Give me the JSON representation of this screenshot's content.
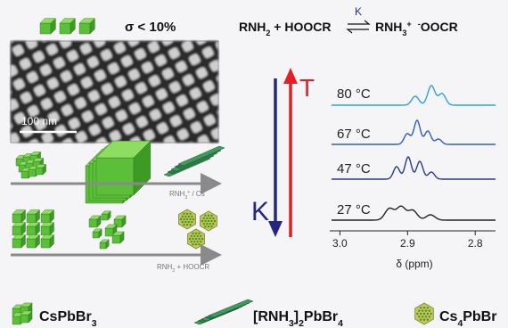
{
  "header": {
    "sigma": "σ < 10%",
    "equation": {
      "lhs": [
        {
          "text": "RNH"
        },
        {
          "text": "2",
          "sub": true
        },
        {
          "text": " + HOOCR"
        }
      ],
      "constant": "K",
      "rhs": [
        {
          "text": "RNH"
        },
        {
          "text": "3",
          "sub": true
        },
        {
          "text": "+",
          "sup": true
        },
        {
          "text": "-",
          "sup": true
        },
        {
          "text": "OOCR"
        }
      ]
    }
  },
  "tem": {
    "scale_bar": "100 nm"
  },
  "scheme": {
    "route1_label": [
      {
        "text": "RNH"
      },
      {
        "text": "3",
        "sub": true
      },
      {
        "text": "+",
        "sup": true
      },
      {
        "text": " / Cs"
      }
    ],
    "route2_label": [
      {
        "text": "RNH"
      },
      {
        "text": "2",
        "sub": true
      },
      {
        "text": " + HOOCR"
      }
    ]
  },
  "trend": {
    "down_label": "K",
    "up_label": "T"
  },
  "nmr": {
    "spectra": [
      {
        "label": "80 °C",
        "color": "#2ba3dc"
      },
      {
        "label": "67 °C",
        "color": "#2f5cb5"
      },
      {
        "label": "47 °C",
        "color": "#283a8c"
      },
      {
        "label": "27 °C",
        "color": "#222222"
      }
    ],
    "x_axis": {
      "label": "δ (ppm)",
      "xlim": [
        3.015,
        2.77
      ],
      "xticks": [
        {
          "value": 3.0,
          "label": "3.0"
        },
        2.9,
        2.8
      ]
    }
  },
  "legend": [
    {
      "parts": [
        {
          "text": "CsPbBr"
        },
        {
          "text": "3",
          "sub": true
        }
      ]
    },
    {
      "parts": [
        {
          "text": "[RNH"
        },
        {
          "text": "3",
          "sub": true
        },
        {
          "text": "]"
        },
        {
          "text": "2",
          "sub": true
        },
        {
          "text": "PbBr"
        },
        {
          "text": "4",
          "sub": true
        }
      ]
    },
    {
      "parts": [
        {
          "text": "Cs"
        },
        {
          "text": "4",
          "sub": true
        },
        {
          "text": "PbBr"
        }
      ]
    }
  ]
}
